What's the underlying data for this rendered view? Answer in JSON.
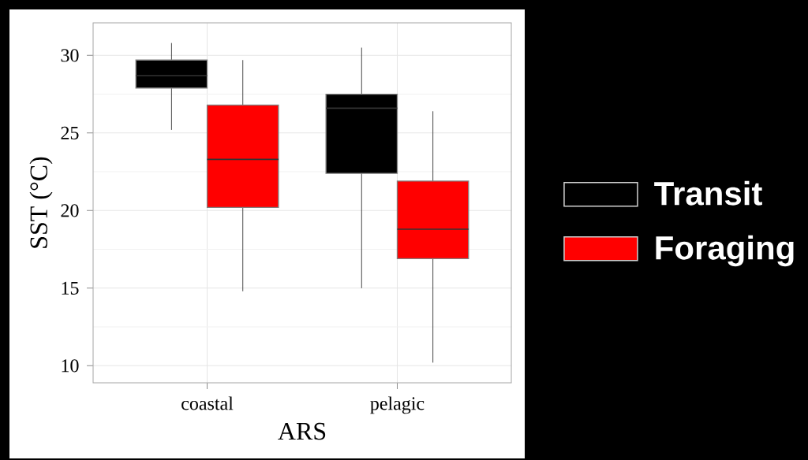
{
  "chart_data": {
    "type": "box",
    "xlabel": "ARS",
    "ylabel": "SST (°C)",
    "categories": [
      "coastal",
      "pelagic"
    ],
    "series": [
      {
        "name": "Transit",
        "color": "#000000",
        "boxes": [
          {
            "low": 25.2,
            "q1": 27.9,
            "median": 28.7,
            "q3": 29.7,
            "high": 30.8
          },
          {
            "low": 15.0,
            "q1": 22.4,
            "median": 26.6,
            "q3": 27.5,
            "high": 30.5
          }
        ]
      },
      {
        "name": "Foraging",
        "color": "#ff0000",
        "boxes": [
          {
            "low": 14.8,
            "q1": 20.2,
            "median": 23.3,
            "q3": 26.8,
            "high": 29.7
          },
          {
            "low": 10.2,
            "q1": 16.9,
            "median": 18.8,
            "q3": 21.9,
            "high": 26.4
          }
        ]
      }
    ],
    "ylim": [
      8.9,
      32.1
    ],
    "yticks": [
      10,
      15,
      20,
      25,
      30
    ],
    "grid": true,
    "legend": "right"
  }
}
